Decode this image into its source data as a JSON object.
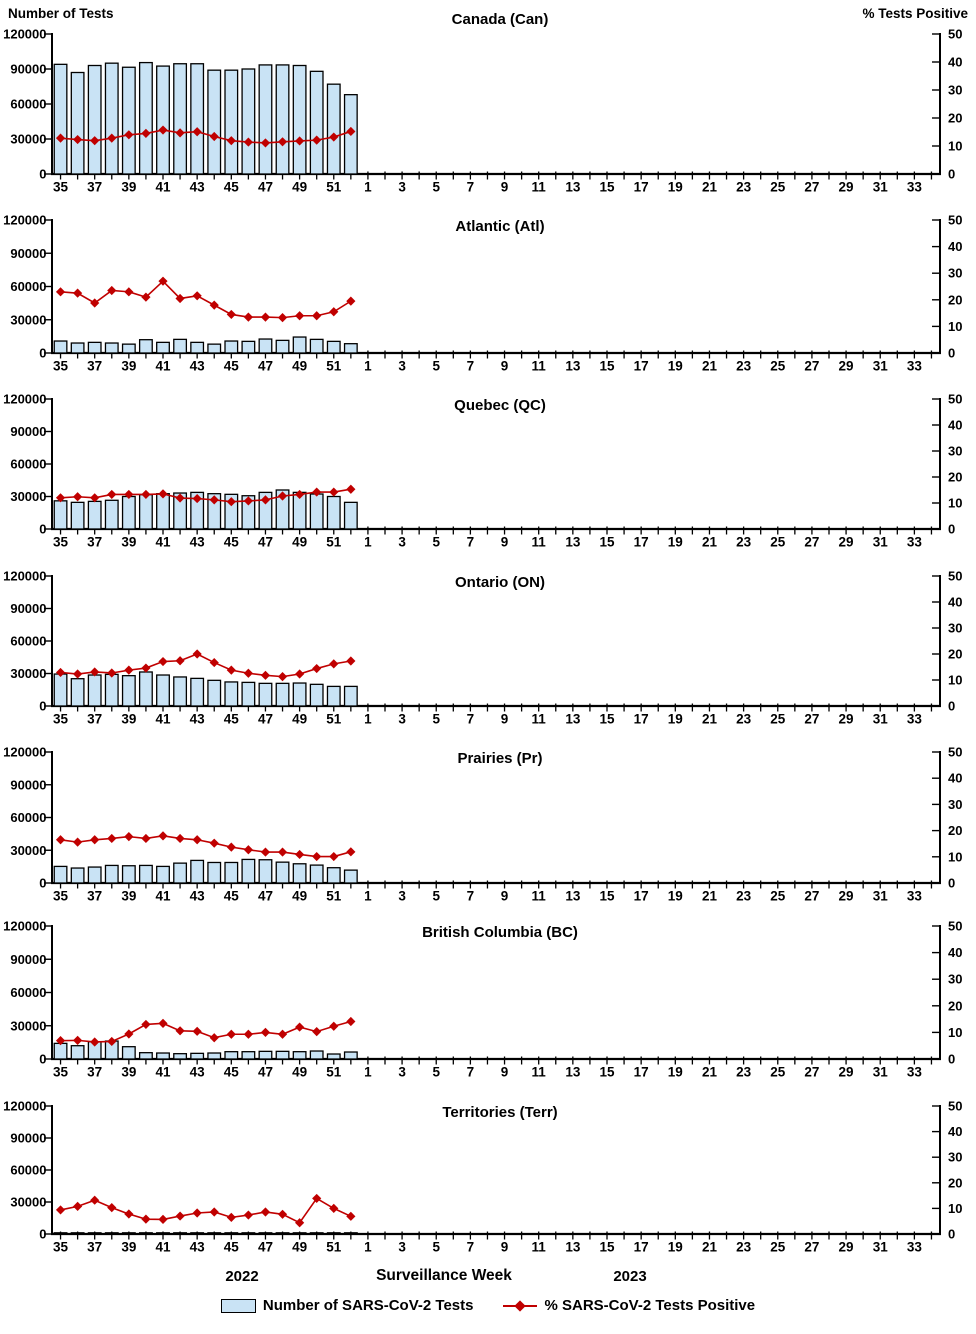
{
  "colors": {
    "bar_fill": "#C9E3F5",
    "bar_stroke": "#000000",
    "line_color": "#C00000",
    "axis_color": "#000000"
  },
  "footer": {
    "year_left": "2022",
    "axis_title": "Surveillance Week",
    "year_right": "2023"
  },
  "legend": {
    "tests_label": "Number of SARS-CoV-2 Tests",
    "positive_label": "% SARS-CoV-2 Tests Positive"
  },
  "chart_data": {
    "type": "bar+line",
    "x": {
      "weeks_2022": [
        35,
        36,
        37,
        38,
        39,
        40,
        41,
        42,
        43,
        44,
        45,
        46,
        47,
        48,
        49,
        50,
        51,
        52
      ],
      "weeks_2023": [
        1,
        2,
        3,
        4,
        5,
        6,
        7,
        8,
        9,
        10,
        11,
        12,
        13,
        14,
        15,
        16,
        17,
        18,
        19,
        20,
        21,
        22,
        23,
        24,
        25,
        26,
        27,
        28,
        29,
        30,
        31,
        32,
        33,
        34
      ],
      "tick_labels": [
        35,
        37,
        39,
        41,
        43,
        45,
        47,
        49,
        51,
        1,
        3,
        5,
        7,
        9,
        11,
        13,
        15,
        17,
        19,
        21,
        23,
        25,
        27,
        29,
        31,
        33
      ],
      "note": "bars and line only for 2022 weeks 35-52"
    },
    "left_axis": {
      "title": "Number of Tests",
      "ticks": [
        0,
        30000,
        60000,
        90000,
        120000
      ],
      "max": 120000
    },
    "right_axis": {
      "title": "% Tests Positive",
      "ticks": [
        0,
        10,
        20,
        30,
        40,
        50
      ],
      "max": 50
    },
    "panels": [
      {
        "title": "Canada (Can)",
        "code": "can",
        "tests": [
          94000,
          87000,
          93000,
          95000,
          91500,
          95500,
          92500,
          94500,
          94500,
          89000,
          89000,
          90000,
          93500,
          93500,
          93000,
          88000,
          77000,
          68000
        ],
        "pct_positive": [
          12.8,
          12.3,
          11.9,
          12.8,
          14.0,
          14.5,
          15.7,
          14.7,
          15.1,
          13.4,
          11.9,
          11.4,
          11.1,
          11.5,
          11.8,
          12.1,
          13.2,
          15.2
        ]
      },
      {
        "title": "Atlantic (Atl)",
        "code": "atl",
        "tests": [
          10800,
          9000,
          9600,
          9000,
          8000,
          12000,
          9600,
          12300,
          9600,
          8000,
          10800,
          10500,
          12600,
          11400,
          14400,
          12300,
          10500,
          8400
        ],
        "pct_positive": [
          23.0,
          22.5,
          18.8,
          23.5,
          23.0,
          21.0,
          27.0,
          20.5,
          21.5,
          18.0,
          14.5,
          13.5,
          13.5,
          13.3,
          14.0,
          14.0,
          15.5,
          19.5
        ]
      },
      {
        "title": "Quebec (QC)",
        "code": "qc",
        "tests": [
          26000,
          24600,
          25500,
          26500,
          30000,
          31700,
          32600,
          33200,
          33800,
          32600,
          32000,
          30700,
          33800,
          36000,
          33800,
          32300,
          30000,
          24600
        ],
        "pct_positive": [
          12.0,
          12.4,
          12.0,
          13.3,
          13.3,
          13.3,
          13.5,
          11.9,
          11.7,
          11.2,
          10.5,
          10.8,
          11.2,
          12.7,
          13.3,
          14.2,
          14.2,
          15.3
        ]
      },
      {
        "title": "Ontario (ON)",
        "code": "on",
        "tests": [
          29500,
          25200,
          28600,
          29200,
          28000,
          31400,
          28600,
          26800,
          25500,
          23700,
          22200,
          21800,
          20900,
          20900,
          21200,
          20000,
          18100,
          18100
        ],
        "pct_positive": [
          12.9,
          12.3,
          13.1,
          12.7,
          13.8,
          14.6,
          17.1,
          17.4,
          20.0,
          16.7,
          13.8,
          12.6,
          11.8,
          11.3,
          12.3,
          14.4,
          16.2,
          17.3
        ]
      },
      {
        "title": "Prairies (Pr)",
        "code": "pr",
        "tests": [
          15200,
          13700,
          14600,
          16100,
          15800,
          16100,
          15200,
          18200,
          20700,
          18800,
          18800,
          21600,
          21300,
          19100,
          17600,
          16400,
          14000,
          11800
        ],
        "pct_positive": [
          16.5,
          15.6,
          16.5,
          17.0,
          17.7,
          17.0,
          18.0,
          17.0,
          16.5,
          15.2,
          13.7,
          12.7,
          11.8,
          11.8,
          10.9,
          10.1,
          10.1,
          11.9
        ]
      },
      {
        "title": "British Columbia (BC)",
        "code": "bc",
        "tests": [
          14100,
          12000,
          15600,
          16200,
          11100,
          5700,
          5400,
          4800,
          5100,
          5400,
          6600,
          6600,
          6900,
          6900,
          6600,
          7200,
          4500,
          6300
        ],
        "pct_positive": [
          6.9,
          7.0,
          6.4,
          6.6,
          9.4,
          13.0,
          13.4,
          10.6,
          10.4,
          8.0,
          9.3,
          9.3,
          10.0,
          9.3,
          12.0,
          10.3,
          12.3,
          14.1
        ]
      },
      {
        "title": "Territories (Terr)",
        "code": "terr",
        "tests": [
          500,
          500,
          500,
          500,
          500,
          500,
          500,
          500,
          500,
          500,
          500,
          500,
          500,
          500,
          500,
          500,
          500,
          500
        ],
        "pct_positive": [
          9.4,
          10.8,
          13.2,
          10.3,
          7.8,
          5.8,
          5.7,
          7.0,
          8.2,
          8.6,
          6.5,
          7.4,
          8.6,
          7.7,
          4.4,
          13.9,
          10.0,
          6.9
        ]
      }
    ]
  }
}
